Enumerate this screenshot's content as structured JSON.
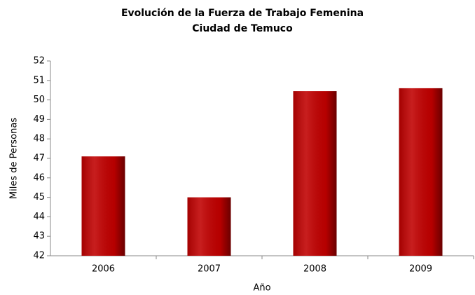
{
  "chart_data": {
    "type": "bar",
    "title": "Evolución de la Fuerza de Trabajo Femenina",
    "subtitle": "Ciudad de Temuco",
    "x_label": "Año",
    "y_label": "Miles de Personas",
    "categories": [
      "2006",
      "2007",
      "2008",
      "2009"
    ],
    "values": [
      47.1,
      45.0,
      50.45,
      50.6
    ],
    "color": "#c00000",
    "ylim": [
      42,
      52
    ],
    "yticks": [
      42,
      43,
      44,
      45,
      46,
      47,
      48,
      49,
      50,
      51,
      52
    ],
    "grid": false
  }
}
